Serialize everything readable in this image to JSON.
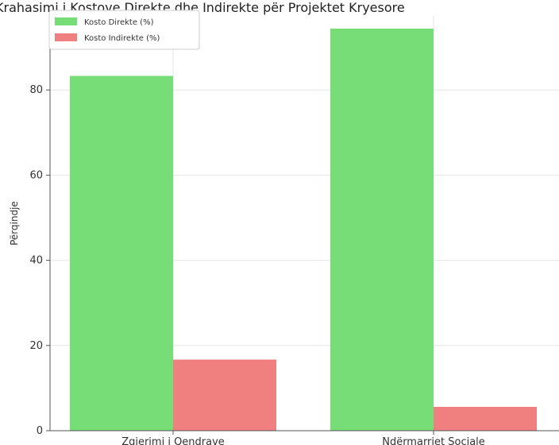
{
  "chart_data": {
    "type": "bar",
    "title": "Krahasimi i Kostove Direkte dhe Indirekte për Projektet Kryesore",
    "ylabel": "Përqindje",
    "xlabel": "",
    "categories": [
      "Zgjerimi i Qendrave",
      "Ndërmarrjet Sociale"
    ],
    "series": [
      {
        "name": "Kosto Direkte (%)",
        "values": [
          83.3,
          94.4
        ]
      },
      {
        "name": "Kosto Indirekte (%)",
        "values": [
          16.7,
          5.6
        ]
      }
    ],
    "ylim": [
      0,
      98
    ],
    "yticks": [
      0,
      20,
      40,
      60,
      80
    ],
    "grid": true,
    "legend": "top-left",
    "colors": [
      "#77dd77",
      "#f08080"
    ]
  }
}
